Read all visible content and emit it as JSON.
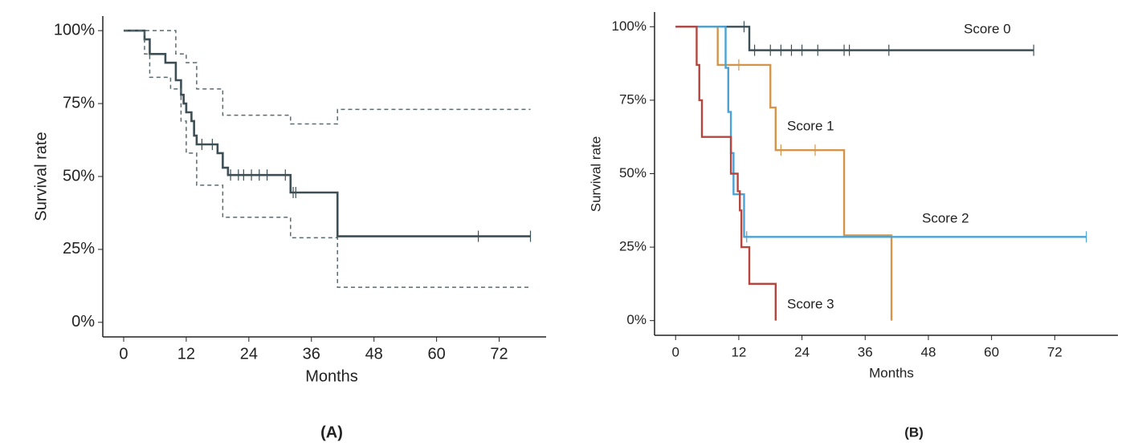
{
  "chart_data": [
    {
      "type": "step",
      "label": "(A)",
      "xlabel": "Months",
      "ylabel": "Survival rate",
      "xlim": [
        -4,
        81
      ],
      "ylim": [
        -5,
        105
      ],
      "xticks": [
        0,
        12,
        24,
        36,
        48,
        60,
        72
      ],
      "yticks": [
        {
          "value": 0,
          "label": "0%"
        },
        {
          "value": 25,
          "label": "25%"
        },
        {
          "value": 50,
          "label": "50%"
        },
        {
          "value": 75,
          "label": "75%"
        },
        {
          "value": 100,
          "label": "100%"
        }
      ],
      "series": [
        {
          "color": "#3d4f55",
          "dashed": false,
          "x": [
            0,
            4,
            5,
            8,
            10,
            11,
            11.5,
            12,
            13,
            13.5,
            14,
            18,
            19,
            20,
            32,
            41,
            78
          ],
          "values": [
            100,
            97,
            92,
            89,
            83,
            78,
            75,
            72,
            69,
            64,
            61,
            58,
            53,
            50.5,
            44.5,
            29.5,
            29.5
          ],
          "censor": {
            "x": [
              15,
              17,
              20.5,
              22,
              23,
              24.5,
              26,
              27.5,
              31,
              32.5,
              33,
              68,
              78
            ],
            "values": [
              61,
              61,
              50.5,
              50.5,
              50.5,
              50.5,
              50.5,
              50.5,
              50.5,
              44.5,
              44.5,
              29.5,
              29.5
            ]
          }
        },
        {
          "color": "#5a6a6e",
          "dashed": true,
          "x": [
            0,
            10,
            12,
            14,
            19,
            32,
            41,
            78
          ],
          "values": [
            100,
            92,
            89,
            80,
            71,
            68,
            73,
            73
          ]
        },
        {
          "color": "#5a6a6e",
          "dashed": true,
          "x": [
            0,
            4,
            5,
            9,
            11,
            12,
            14,
            19,
            32,
            41,
            78
          ],
          "values": [
            100,
            92,
            84,
            80,
            69,
            58,
            47,
            36,
            29,
            12,
            12
          ]
        }
      ]
    },
    {
      "type": "step",
      "label": "(B)",
      "xlabel": "Months",
      "ylabel": "Survival rate",
      "xlim": [
        -4,
        84
      ],
      "ylim": [
        -5,
        105
      ],
      "xticks": [
        0,
        12,
        24,
        36,
        48,
        60,
        72
      ],
      "yticks": [
        {
          "value": 0,
          "label": "0%"
        },
        {
          "value": 25,
          "label": "25%"
        },
        {
          "value": 50,
          "label": "50%"
        },
        {
          "value": 75,
          "label": "75%"
        },
        {
          "value": 100,
          "label": "100%"
        }
      ],
      "series": [
        {
          "name": "Score 0",
          "color": "#3d4f55",
          "dashed": false,
          "x": [
            0,
            14,
            68
          ],
          "values": [
            100,
            92,
            92
          ],
          "censor": {
            "x": [
              13,
              15,
              18,
              20,
              22,
              24,
              27,
              32,
              33,
              40.5,
              68
            ],
            "values": [
              100,
              92,
              92,
              92,
              92,
              92,
              92,
              92,
              92,
              92,
              92
            ]
          }
        },
        {
          "name": "Score 1",
          "color": "#d4954a",
          "dashed": false,
          "x": [
            0,
            8,
            18,
            19,
            32,
            41
          ],
          "values": [
            100,
            87,
            72.5,
            58,
            29,
            0
          ],
          "censor": {
            "x": [
              12,
              20,
              26.5
            ],
            "values": [
              87,
              58,
              58
            ]
          }
        },
        {
          "name": "Score 2",
          "color": "#4aa3d4",
          "dashed": false,
          "x": [
            0,
            9.5,
            10,
            10.5,
            11,
            13,
            78
          ],
          "values": [
            100,
            86,
            71,
            57,
            43,
            28.5,
            28.5
          ],
          "censor": {
            "x": [
              13.5,
              78
            ],
            "values": [
              28.5,
              28.5
            ]
          }
        },
        {
          "name": "Score 3",
          "color": "#b5463f",
          "dashed": false,
          "x": [
            0,
            4,
            4.5,
            5,
            10.5,
            11.8,
            12.2,
            12.5,
            14,
            19
          ],
          "values": [
            100,
            87,
            75,
            62.5,
            50,
            44,
            37.5,
            25,
            12.5,
            0
          ]
        }
      ]
    }
  ]
}
